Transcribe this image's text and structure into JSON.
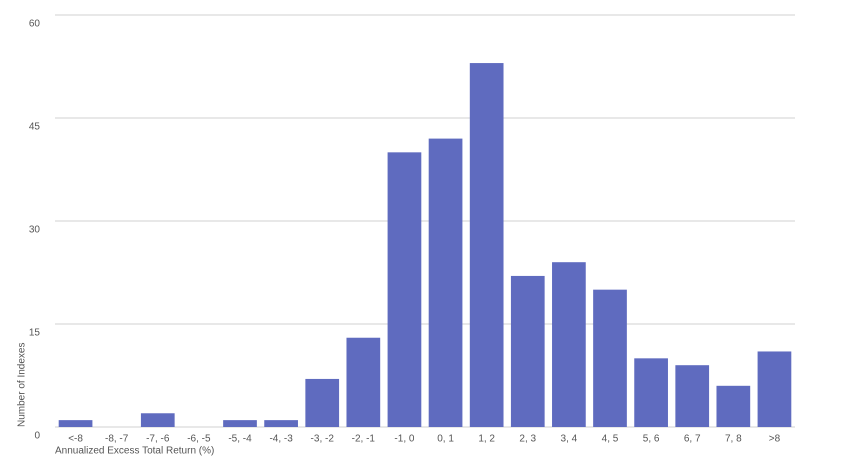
{
  "chart_data": {
    "type": "bar",
    "x_label": "Annualized Excess Total Return (%)",
    "y_label": "Number of Indexes",
    "categories": [
      "<-8",
      "-8, -7",
      "-7, -6",
      "-6, -5",
      "-5, -4",
      "-4, -3",
      "-3, -2",
      "-2, -1",
      "-1, 0",
      "0, 1",
      "1, 2",
      "2, 3",
      "3, 4",
      "4, 5",
      "5, 6",
      "6, 7",
      "7, 8",
      ">8"
    ],
    "values": [
      1,
      0,
      2,
      0,
      1,
      1,
      7,
      13,
      40,
      42,
      53,
      22,
      24,
      20,
      10,
      9,
      6,
      11
    ],
    "color": "#5f6bbf",
    "ylim": [
      0,
      60
    ],
    "yticks": [
      0,
      15,
      30,
      45,
      60
    ],
    "grid": true
  }
}
